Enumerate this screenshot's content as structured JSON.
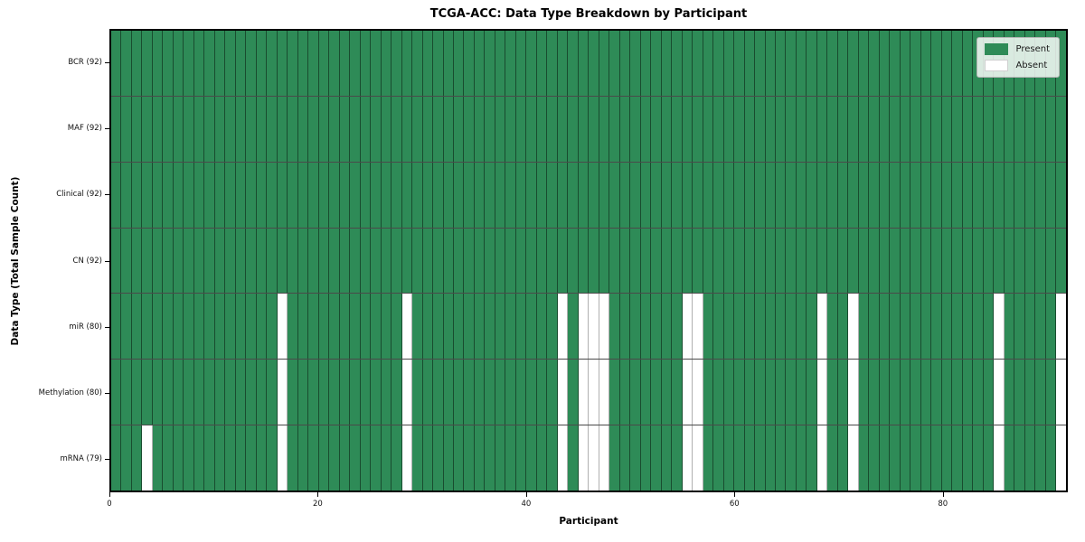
{
  "chart_data": {
    "type": "heatmap",
    "title": "TCGA-ACC: Data Type Breakdown by Participant",
    "xlabel": "Participant",
    "ylabel": "Data Type (Total Sample Count)",
    "x_range": [
      0,
      92
    ],
    "x_ticks": [
      0,
      20,
      40,
      60,
      80
    ],
    "n_participants": 92,
    "grid": true,
    "legend_position": "upper right",
    "legend": [
      {
        "label": "Present",
        "color": "#2e8b57"
      },
      {
        "label": "Absent",
        "color": "#ffffff"
      }
    ],
    "colors": {
      "present": "#2e8b57",
      "absent": "#ffffff",
      "row_separator": "#4a4a4a",
      "cell_grid_on_green": "rgba(0,0,0,0.45)",
      "cell_grid_on_white": "#b0b0b0",
      "plot_border": "#000000"
    },
    "rows": [
      {
        "label": "BCR (92)",
        "data_type": "BCR",
        "total": 92,
        "absent_participants": []
      },
      {
        "label": "MAF (92)",
        "data_type": "MAF",
        "total": 92,
        "absent_participants": []
      },
      {
        "label": "Clinical (92)",
        "data_type": "Clinical",
        "total": 92,
        "absent_participants": []
      },
      {
        "label": "CN (92)",
        "data_type": "CN",
        "total": 92,
        "absent_participants": []
      },
      {
        "label": "miR (80)",
        "data_type": "miR",
        "total": 80,
        "absent_participants": [
          16,
          28,
          43,
          45,
          46,
          47,
          55,
          56,
          68,
          71,
          85,
          91
        ]
      },
      {
        "label": "Methylation (80)",
        "data_type": "Methylation",
        "total": 80,
        "absent_participants": [
          16,
          28,
          43,
          45,
          46,
          47,
          55,
          56,
          68,
          71,
          85,
          91
        ]
      },
      {
        "label": "mRNA (79)",
        "data_type": "mRNA",
        "total": 79,
        "absent_participants": [
          3,
          16,
          28,
          43,
          45,
          46,
          47,
          55,
          56,
          68,
          71,
          85,
          91
        ]
      }
    ]
  }
}
